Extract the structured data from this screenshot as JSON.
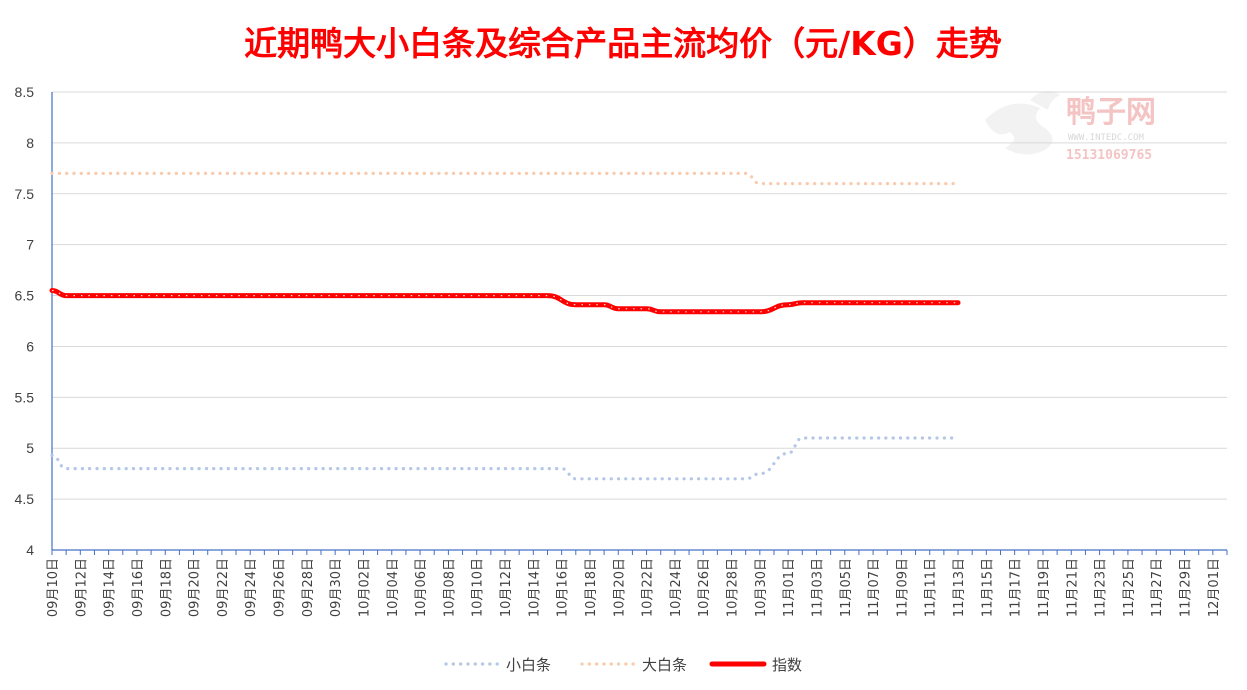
{
  "chart_data": {
    "type": "line",
    "title": "近期鸭大小白条及综合产品主流均价（元/KG）走势",
    "xlabel": "",
    "ylabel": "",
    "ylim": [
      4,
      8.5
    ],
    "yticks": [
      "8.5",
      "8",
      "7.5",
      "7",
      "6.5",
      "6",
      "5.5",
      "5",
      "4.5",
      "4"
    ],
    "x_range": [
      "09月10日",
      "12月02日"
    ],
    "xticks": [
      "09月10日",
      "09月12日",
      "09月14日",
      "09月16日",
      "09月18日",
      "09月20日",
      "09月22日",
      "09月24日",
      "09月26日",
      "09月28日",
      "09月30日",
      "10月02日",
      "10月04日",
      "10月06日",
      "10月08日",
      "10月10日",
      "10月12日",
      "10月14日",
      "10月16日",
      "10月18日",
      "10月20日",
      "10月22日",
      "10月24日",
      "10月26日",
      "10月28日",
      "10月30日",
      "11月01日",
      "11月03日",
      "11月05日",
      "11月07日",
      "11月09日",
      "11月11日",
      "11月13日",
      "11月15日",
      "11月17日",
      "11月19日",
      "11月21日",
      "11月23日",
      "11月25日",
      "11月27日",
      "11月29日",
      "12月01日"
    ],
    "grid": true,
    "legend_position": "bottom",
    "series": [
      {
        "name": "小白条",
        "color": "#b4c7e7",
        "style": "dotted",
        "points": [
          {
            "x": "09月10日",
            "y": 4.93
          },
          {
            "x": "09月11日",
            "y": 4.8
          },
          {
            "x": "10月16日",
            "y": 4.8
          },
          {
            "x": "10月17日",
            "y": 4.7
          },
          {
            "x": "10月29日",
            "y": 4.7
          },
          {
            "x": "10月30日",
            "y": 4.75
          },
          {
            "x": "11月01日",
            "y": 4.95
          },
          {
            "x": "11月02日",
            "y": 5.1
          },
          {
            "x": "11月13日",
            "y": 5.1
          }
        ]
      },
      {
        "name": "大白条",
        "color": "#f8cbad",
        "style": "dotted",
        "points": [
          {
            "x": "09月10日",
            "y": 7.7
          },
          {
            "x": "10月29日",
            "y": 7.7
          },
          {
            "x": "10月30日",
            "y": 7.6
          },
          {
            "x": "11月13日",
            "y": 7.6
          }
        ]
      },
      {
        "name": "指数",
        "color": "#ff0000",
        "style": "solid",
        "points": [
          {
            "x": "09月10日",
            "y": 6.55
          },
          {
            "x": "09月11日",
            "y": 6.5
          },
          {
            "x": "10月15日",
            "y": 6.5
          },
          {
            "x": "10月17日",
            "y": 6.41
          },
          {
            "x": "10月19日",
            "y": 6.41
          },
          {
            "x": "10月20日",
            "y": 6.37
          },
          {
            "x": "10月22日",
            "y": 6.37
          },
          {
            "x": "10月23日",
            "y": 6.34
          },
          {
            "x": "10月30日",
            "y": 6.34
          },
          {
            "x": "11月01日",
            "y": 6.41
          },
          {
            "x": "11月02日",
            "y": 6.43
          },
          {
            "x": "11月13日",
            "y": 6.43
          }
        ]
      }
    ]
  },
  "watermark": {
    "brand": "鸭子网",
    "site": "WWW.INTEDC.COM",
    "phone": "15131069765"
  }
}
